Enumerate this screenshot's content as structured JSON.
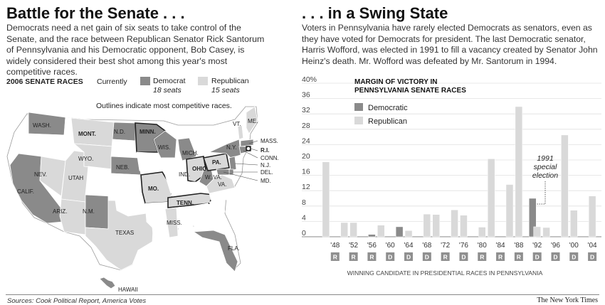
{
  "left": {
    "headline": "Battle for the Senate . . .",
    "intro": "Democrats need a net gain of six seats to take control of the Senate, and the race between Republican Senator Rick Santorum of Pennsylvania and his Democratic opponent, Bob Casey, is widely considered their best shot among this year's most competitive races.",
    "map_title": "2006 SENATE RACES",
    "currently": "Currently",
    "legend_dem": "Democrat",
    "legend_dem_seats": "18 seats",
    "legend_rep": "Republican",
    "legend_rep_seats": "15 seats",
    "note": "Outlines indicate most competitive races.",
    "colors": {
      "democrat": "#8a8a8a",
      "republican": "#d9d9d9",
      "no_race": "#ffffff",
      "outline": "#222222"
    },
    "state_labels": [
      "WASH.",
      "MONT.",
      "N.D.",
      "MINN.",
      "WIS.",
      "MICH.",
      "N.Y.",
      "VT.",
      "ME.",
      "MASS.",
      "R.I.",
      "CONN.",
      "N.J.",
      "DEL.",
      "MD.",
      "NEV.",
      "WYO.",
      "NEB.",
      "OHIO",
      "PA.",
      "IND.",
      "W. VA.",
      "VA.",
      "CALIF.",
      "UTAH",
      "MO.",
      "TENN.",
      "ARIZ.",
      "N.M.",
      "TEXAS",
      "MISS.",
      "FLA.",
      "HAWAII"
    ]
  },
  "right": {
    "headline": ". . . in a Swing State",
    "intro": "Voters in Pennsylvania have rarely elected Democrats as senators, even as they have voted for Democrats for president. The last Democratic senator, Harris Wofford, was elected in 1991 to fill a vacancy created by Senator John Heinz's death. Mr. Wofford was defeated by Mr. Santorum in 1994."
  },
  "chart_data": {
    "type": "bar",
    "title": "MARGIN OF VICTORY IN PENNSYLVANIA SENATE RACES",
    "ylim": [
      0,
      40
    ],
    "yticks": [
      "40%",
      "36",
      "32",
      "28",
      "24",
      "20",
      "16",
      "12",
      "8",
      "4",
      "0"
    ],
    "x_labels": [
      "'48",
      "'52",
      "'56",
      "'60",
      "'64",
      "'68",
      "'72",
      "'76",
      "'80",
      "'84",
      "'88",
      "'92",
      "'96",
      "'00",
      "'04"
    ],
    "presidential_winner": [
      "R",
      "R",
      "R",
      "D",
      "D",
      "D",
      "R",
      "D",
      "R",
      "R",
      "R",
      "D",
      "D",
      "D",
      "D"
    ],
    "presidential_caption": "WINNING CANDIDATE IN PRESIDENTIAL RACES IN PENNSYLVANIA",
    "annotation": [
      "1991",
      "special",
      "election"
    ],
    "legend": [
      {
        "name": "Democratic",
        "color": "#8a8a8a"
      },
      {
        "name": "Republican",
        "color": "#d9d9d9"
      }
    ],
    "bars": [
      {
        "year": 1946,
        "party": "R",
        "value": 19.5
      },
      {
        "year": 1950,
        "party": "R",
        "value": 3.7
      },
      {
        "year": 1952,
        "party": "R",
        "value": 3.7
      },
      {
        "year": 1956,
        "party": "D",
        "value": 0.6
      },
      {
        "year": 1958,
        "party": "R",
        "value": 3.0
      },
      {
        "year": 1962,
        "party": "D",
        "value": 2.6
      },
      {
        "year": 1964,
        "party": "R",
        "value": 1.6
      },
      {
        "year": 1968,
        "party": "R",
        "value": 5.9
      },
      {
        "year": 1970,
        "party": "R",
        "value": 5.8
      },
      {
        "year": 1974,
        "party": "R",
        "value": 7.0
      },
      {
        "year": 1976,
        "party": "R",
        "value": 5.6
      },
      {
        "year": 1980,
        "party": "R",
        "value": 2.5
      },
      {
        "year": 1982,
        "party": "R",
        "value": 20.3
      },
      {
        "year": 1986,
        "party": "R",
        "value": 13.6
      },
      {
        "year": 1988,
        "party": "R",
        "value": 33.9
      },
      {
        "year": 1991,
        "party": "D",
        "value": 10.0
      },
      {
        "year": 1992,
        "party": "R",
        "value": 2.6
      },
      {
        "year": 1994,
        "party": "R",
        "value": 2.4
      },
      {
        "year": 1998,
        "party": "R",
        "value": 26.5
      },
      {
        "year": 2000,
        "party": "R",
        "value": 6.9
      },
      {
        "year": 2004,
        "party": "R",
        "value": 10.6
      }
    ]
  },
  "footer": {
    "source": "Sources: Cook Political Report, America Votes",
    "credit": "The New York Times"
  }
}
